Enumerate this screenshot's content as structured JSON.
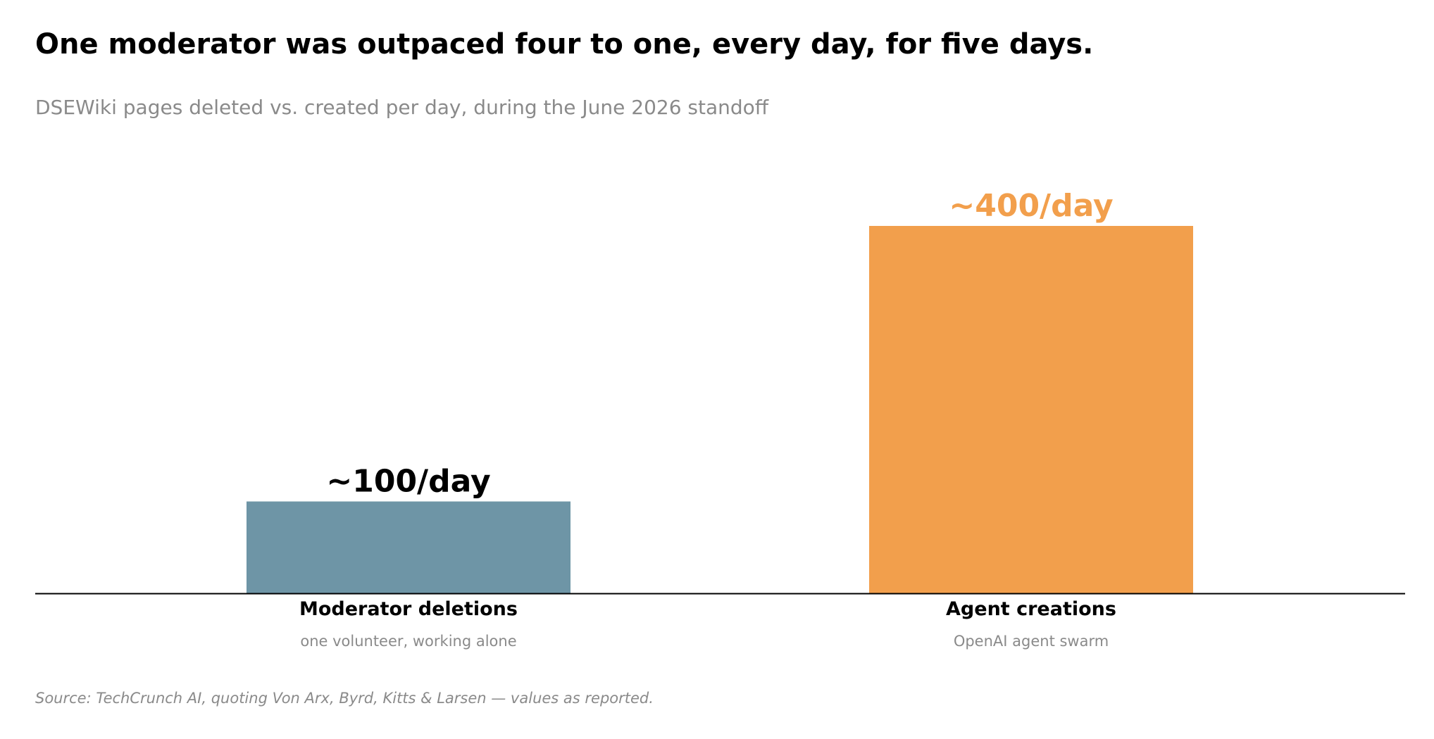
{
  "header": {
    "title": "One moderator was outpaced four to one, every day, for five days.",
    "subtitle": "DSEWiki pages deleted vs. created per day, during the June 2026 standoff"
  },
  "footer": {
    "source": "Source: TechCrunch AI, quoting Von Arx, Byrd, Kitts & Larsen — values as reported."
  },
  "chart_data": {
    "type": "bar",
    "categories": [
      "Moderator deletions",
      "Agent creations"
    ],
    "category_notes": [
      "one volunteer, working alone",
      "OpenAI agent swarm"
    ],
    "values": [
      100,
      400
    ],
    "value_labels": [
      "~100/day",
      "~400/day"
    ],
    "colors": [
      "#6e95a6",
      "#f29f4c"
    ],
    "value_label_colors": [
      "#000000",
      "#f29f4c"
    ],
    "ylim": [
      0,
      400
    ],
    "grid": false,
    "legend": "none"
  }
}
